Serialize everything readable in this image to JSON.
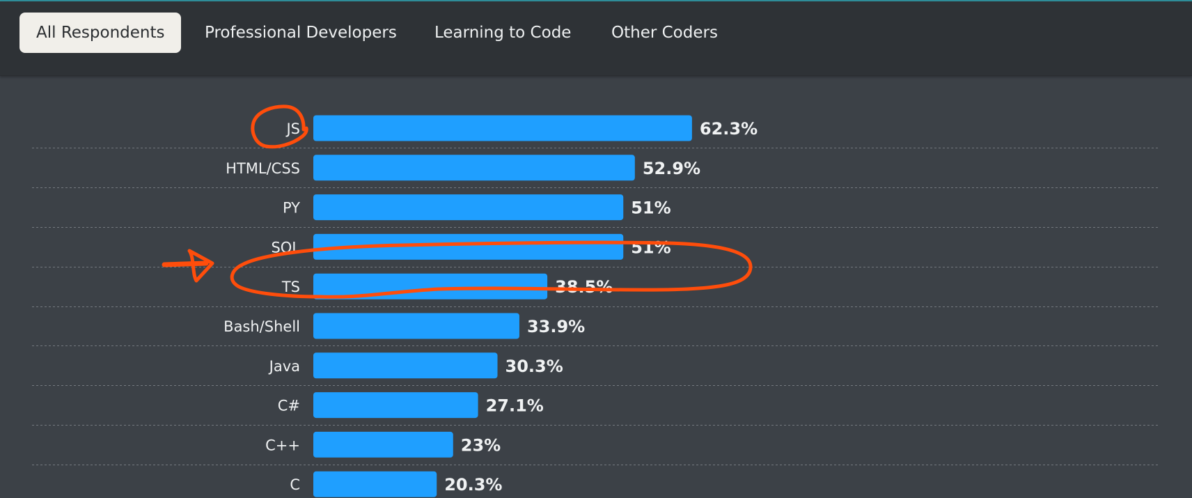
{
  "tabs": [
    {
      "label": "All Respondents",
      "active": true
    },
    {
      "label": "Professional Developers",
      "active": false
    },
    {
      "label": "Learning to Code",
      "active": false
    },
    {
      "label": "Other Coders",
      "active": false
    }
  ],
  "colors": {
    "bar": "#1f9fff",
    "background": "#3c4147",
    "tabbar": "#2e3236",
    "annotation": "#ff4d0b"
  },
  "chart_data": {
    "type": "bar",
    "orientation": "horizontal",
    "categories": [
      "JS",
      "HTML/CSS",
      "PY",
      "SQL",
      "TS",
      "Bash/Shell",
      "Java",
      "C#",
      "C++",
      "C"
    ],
    "values": [
      62.3,
      52.9,
      51,
      51,
      38.5,
      33.9,
      30.3,
      27.1,
      23,
      20.3
    ],
    "value_labels": [
      "62.3%",
      "52.9%",
      "51%",
      "51%",
      "38.5%",
      "33.9%",
      "30.3%",
      "27.1%",
      "23%",
      "20.3%"
    ],
    "xlim": [
      0,
      100
    ],
    "grid": "horizontal dashed separators",
    "annotations": [
      {
        "type": "circle",
        "target": "JS"
      },
      {
        "type": "ellipse",
        "target": "TS"
      },
      {
        "type": "arrow",
        "target": "TS"
      }
    ]
  }
}
